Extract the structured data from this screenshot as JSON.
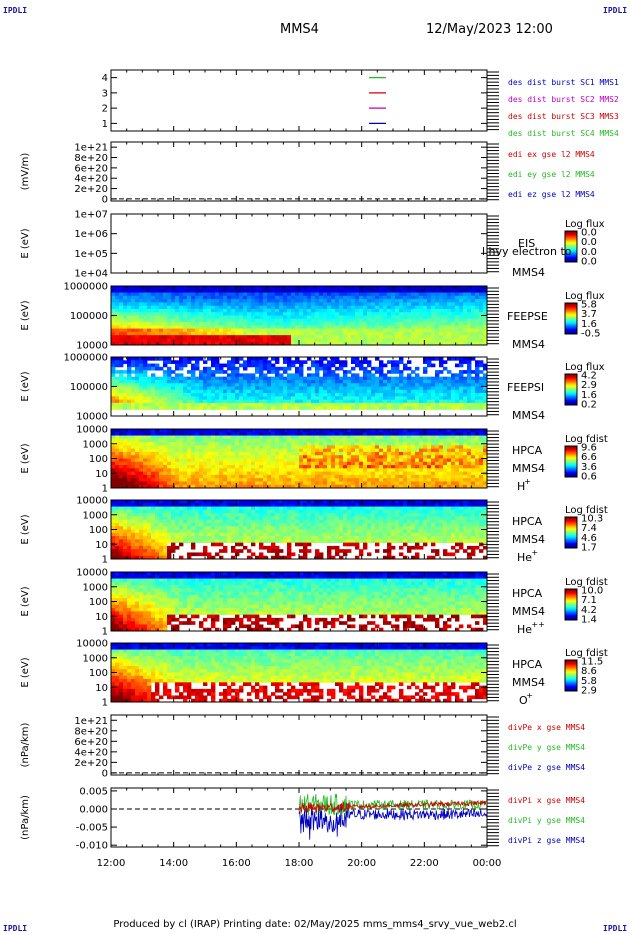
{
  "header": {
    "corner_label": "IPDLI",
    "spacecraft": "MMS4",
    "datetime": "12/May/2023 12:00"
  },
  "footer": {
    "text": "Produced by cl (IRAP)    Printing date: 02/May/2025    mms_mms4_srvy_vue_web2.cl"
  },
  "colors": {
    "mms1": "#2a9d2a",
    "mms2": "#d00000",
    "mms3": "#c000c0",
    "mms4": "#0000c0",
    "x_component": "#d00000",
    "y_component": "#22bb22",
    "z_component": "#0000c0"
  },
  "chart_data": [
    {
      "type": "line",
      "id": "burst",
      "yticks": [
        "1",
        "2",
        "3",
        "4"
      ],
      "ylim": [
        0.5,
        4.5
      ],
      "legend": [
        {
          "text": "des dist burst SC1 MMS1",
          "color": "#0000c0"
        },
        {
          "text": "des dist burst SC2 MMS2",
          "color": "#c000c0"
        },
        {
          "text": "des dist burst SC3 MMS3",
          "color": "#d00000"
        },
        {
          "text": "des dist burst SC4 MMS4",
          "color": "#22bb22"
        }
      ],
      "series": [
        {
          "y": 4,
          "color": "#22bb22"
        },
        {
          "y": 3,
          "color": "#d00000"
        },
        {
          "y": 2,
          "color": "#c000c0"
        },
        {
          "y": 1,
          "color": "#0000c0"
        }
      ]
    },
    {
      "type": "line",
      "id": "edi",
      "ylabel": "(mV/m)",
      "yticks": [
        "1e+21",
        "8e+20",
        "6e+20",
        "4e+20",
        "2e+20",
        "0"
      ],
      "ylim": [
        -4e+19,
        1.1e+21
      ],
      "legend": [
        {
          "text": "edi ex gse l2 MMS4",
          "color": "#d00000"
        },
        {
          "text": "edi ey gse l2 MMS4",
          "color": "#22bb22"
        },
        {
          "text": "edi ez gse l2 MMS4",
          "color": "#0000c0"
        }
      ]
    },
    {
      "type": "heatmap",
      "id": "eis",
      "ylabel": "E (eV)",
      "yticks": [
        "1e+07",
        "1e+06",
        "1e+05",
        "1e+04"
      ],
      "ylim": [
        4,
        7
      ],
      "labels": [
        "EIS",
        "MMS4"
      ],
      "overlay_text": "l hvy electron to",
      "colorbar": {
        "title": "Log flux",
        "ticks": [
          "0.0",
          "0.0",
          "0.0",
          "0.0"
        ]
      }
    },
    {
      "type": "heatmap",
      "id": "feepse",
      "ylabel": "E (eV)",
      "yticks": [
        "1000000",
        "100000",
        "10000"
      ],
      "ylim": [
        4,
        6
      ],
      "labels": [
        "FEEPSE",
        "MMS4"
      ],
      "colorbar": {
        "title": "Log flux",
        "ticks": [
          "5.8",
          "3.7",
          "1.6",
          "-0.5"
        ]
      }
    },
    {
      "type": "heatmap",
      "id": "feepsi",
      "ylabel": "E (eV)",
      "yticks": [
        "1000000",
        "100000",
        "10000"
      ],
      "ylim": [
        4,
        6
      ],
      "labels": [
        "FEEPSI",
        "MMS4"
      ],
      "colorbar": {
        "title": "Log flux",
        "ticks": [
          "4.2",
          "2.9",
          "1.6",
          "0.2"
        ]
      }
    },
    {
      "type": "heatmap",
      "id": "hpca_h",
      "ylabel": "E (eV)",
      "yticks": [
        "10000",
        "1000",
        "100",
        "10",
        "1"
      ],
      "ylim": [
        0,
        4.5
      ],
      "labels": [
        "HPCA",
        "MMS4",
        "H",
        "+"
      ],
      "colorbar": {
        "title": "Log fdist",
        "ticks": [
          "9.6",
          "6.6",
          "3.6",
          "0.6"
        ]
      }
    },
    {
      "type": "heatmap",
      "id": "hpca_he",
      "ylabel": "E (eV)",
      "yticks": [
        "10000",
        "1000",
        "100",
        "10",
        "1"
      ],
      "ylim": [
        0,
        4.5
      ],
      "labels": [
        "HPCA",
        "MMS4",
        "He",
        "+"
      ],
      "colorbar": {
        "title": "Log fdist",
        "ticks": [
          "10.3",
          "7.4",
          "4.6",
          "1.7"
        ]
      }
    },
    {
      "type": "heatmap",
      "id": "hpca_hepp",
      "ylabel": "E (eV)",
      "yticks": [
        "10000",
        "1000",
        "100",
        "10",
        "1"
      ],
      "ylim": [
        0,
        4.5
      ],
      "labels": [
        "HPCA",
        "MMS4",
        "He",
        "++"
      ],
      "colorbar": {
        "title": "Log fdist",
        "ticks": [
          "10.0",
          "7.1",
          "4.2",
          "1.4"
        ]
      }
    },
    {
      "type": "heatmap",
      "id": "hpca_o",
      "ylabel": "E (eV)",
      "yticks": [
        "10000",
        "1000",
        "100",
        "10",
        "1"
      ],
      "ylim": [
        0,
        4.5
      ],
      "labels": [
        "HPCA",
        "MMS4",
        "O",
        "+"
      ],
      "colorbar": {
        "title": "Log fdist",
        "ticks": [
          "11.5",
          "8.6",
          "5.8",
          "2.9"
        ]
      }
    },
    {
      "type": "line",
      "id": "divpe",
      "ylabel": "(nPa/km)",
      "yticks": [
        "1e+21",
        "8e+20",
        "6e+20",
        "4e+20",
        "2e+20",
        "0"
      ],
      "ylim": [
        -4e+19,
        1.1e+21
      ],
      "legend": [
        {
          "text": "divPe x gse MMS4",
          "color": "#d00000"
        },
        {
          "text": "divPe y gse MMS4",
          "color": "#22bb22"
        },
        {
          "text": "divPe z gse MMS4",
          "color": "#0000c0"
        }
      ]
    },
    {
      "type": "line",
      "id": "divpi",
      "ylabel": "(nPa/km)",
      "yticks": [
        "0.005",
        "0.000",
        "-0.005",
        "-0.010"
      ],
      "ylim": [
        -0.0105,
        0.0058
      ],
      "data_start_hour": 18.0,
      "legend": [
        {
          "text": "divPi x gse MMS4",
          "color": "#d00000"
        },
        {
          "text": "divPi y gse MMS4",
          "color": "#22bb22"
        },
        {
          "text": "divPi z gse MMS4",
          "color": "#0000c0"
        }
      ]
    }
  ],
  "xaxis": {
    "tick_labels": [
      "12:00",
      "14:00",
      "16:00",
      "18:00",
      "20:00",
      "22:00",
      "00:00"
    ],
    "range_hours": [
      12,
      24
    ]
  }
}
